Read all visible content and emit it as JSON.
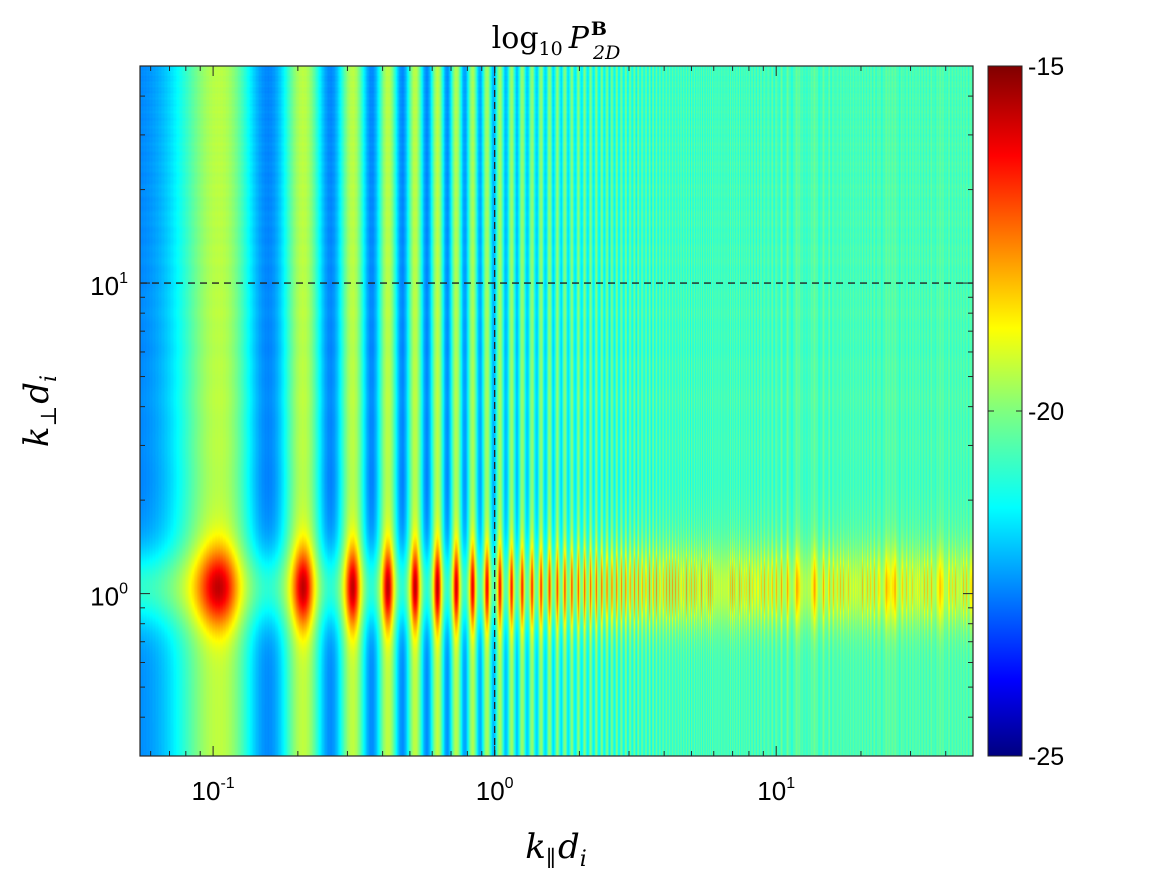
{
  "chart_data": {
    "type": "heatmap",
    "title": {
      "base": "log",
      "sub": "10",
      "var": "P",
      "sup": "B",
      "sub2": "2D"
    },
    "xlabel": {
      "var": "k",
      "sub": "∥",
      "var2": "d",
      "sub2": "i"
    },
    "ylabel": {
      "var": "k",
      "sub": "⊥",
      "var2": "d",
      "sub2": "i"
    },
    "x_scale": "log",
    "y_scale": "log",
    "xlim": [
      0.055,
      50
    ],
    "ylim": [
      0.3,
      50
    ],
    "x_ticks": [
      {
        "value": 0.1,
        "base": "10",
        "exp": "-1"
      },
      {
        "value": 1,
        "base": "10",
        "exp": "0"
      },
      {
        "value": 10,
        "base": "10",
        "exp": "1"
      }
    ],
    "y_ticks": [
      {
        "value": 1,
        "base": "10",
        "exp": "0"
      },
      {
        "value": 10,
        "base": "10",
        "exp": "1"
      }
    ],
    "reference_lines": {
      "x": 1,
      "y": 10,
      "style": "dashed"
    },
    "colorbar": {
      "colormap": "jet",
      "range": [
        -25,
        -15
      ],
      "ticks": [
        -25,
        -20,
        -15
      ],
      "tick_labels": [
        "-25",
        "-20",
        "-15"
      ],
      "placement": "right"
    },
    "features": {
      "ridge_k_perp": 1.05,
      "background_level": -20.5,
      "peak_level": -16.3,
      "vertical_stripe_spacing_k_par": 0.104
    }
  }
}
